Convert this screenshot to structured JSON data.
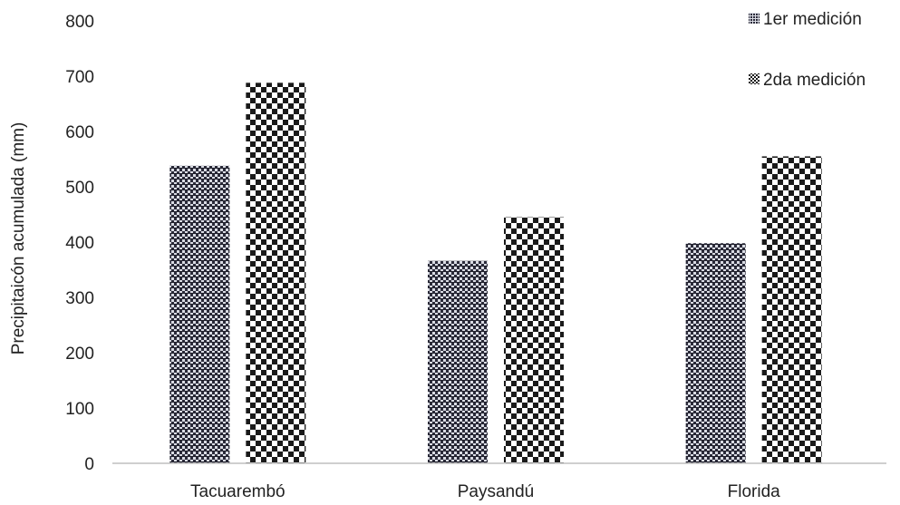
{
  "chart_data": {
    "type": "bar",
    "title": "",
    "xlabel": "",
    "ylabel": "Precipitaicón acumulada (mm)",
    "ylim": [
      0,
      800
    ],
    "yticks": [
      0,
      100,
      200,
      300,
      400,
      500,
      600,
      700,
      800
    ],
    "grid": false,
    "legend_position": "top-right",
    "categories": [
      "Tacuarembó",
      "Paysandú",
      "Florida"
    ],
    "series": [
      {
        "name": "1er medición",
        "pattern": "dense-hatch",
        "color": "#2b2b3a",
        "values": [
          538,
          366,
          398
        ]
      },
      {
        "name": "2da medición",
        "pattern": "checkerboard",
        "color": "#1a1a1a",
        "values": [
          688,
          445,
          555
        ]
      }
    ]
  }
}
